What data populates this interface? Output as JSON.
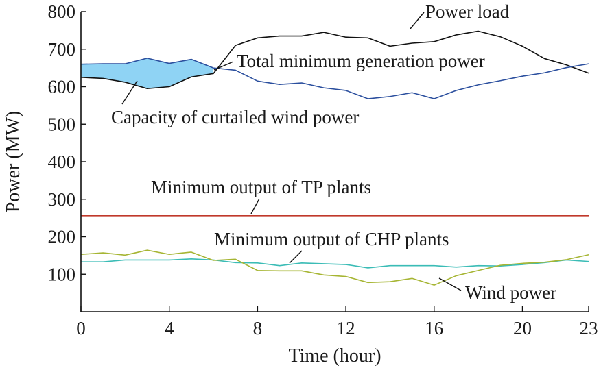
{
  "chart_data": {
    "type": "line",
    "title": "",
    "xlabel": "Time (hour)",
    "ylabel": "Power (MW)",
    "x": [
      0,
      1,
      2,
      3,
      4,
      5,
      6,
      7,
      8,
      9,
      10,
      11,
      12,
      13,
      14,
      15,
      16,
      17,
      18,
      19,
      20,
      21,
      22,
      23
    ],
    "xticks": [
      0,
      4,
      8,
      12,
      16,
      20,
      23
    ],
    "yticks": [
      100,
      200,
      300,
      400,
      500,
      600,
      700,
      800
    ],
    "xlim": [
      0,
      23
    ],
    "ylim": [
      0,
      800
    ],
    "grid": false,
    "legend": "none",
    "series": [
      {
        "key": "load",
        "name": "Power load",
        "color": "#111111",
        "values": [
          625,
          622,
          612,
          595,
          600,
          626,
          635,
          710,
          730,
          735,
          735,
          745,
          732,
          730,
          708,
          716,
          720,
          738,
          748,
          733,
          708,
          675,
          658,
          636
        ]
      },
      {
        "key": "min_gen",
        "name": "Total minimum generation power",
        "color": "#2b4f9e",
        "values": [
          660,
          661,
          661,
          676,
          662,
          673,
          650,
          644,
          615,
          606,
          610,
          597,
          590,
          568,
          574,
          584,
          568,
          590,
          605,
          616,
          628,
          637,
          651,
          661
        ]
      },
      {
        "key": "tp",
        "name": "Minimum output of TP plants",
        "color": "#c0392b",
        "values": [
          256,
          256,
          256,
          256,
          256,
          256,
          256,
          256,
          256,
          256,
          256,
          256,
          256,
          256,
          256,
          256,
          256,
          256,
          256,
          256,
          256,
          256,
          256,
          256
        ]
      },
      {
        "key": "chp",
        "name": "Minimum output of CHP plants",
        "color": "#3bbcb6",
        "values": [
          133,
          133,
          138,
          138,
          138,
          141,
          138,
          131,
          130,
          123,
          130,
          128,
          126,
          117,
          123,
          123,
          123,
          119,
          123,
          122,
          126,
          131,
          138,
          134
        ]
      },
      {
        "key": "wind",
        "name": "Wind power",
        "color": "#a6b533",
        "values": [
          153,
          157,
          151,
          164,
          153,
          159,
          137,
          140,
          110,
          109,
          109,
          98,
          94,
          78,
          80,
          89,
          71,
          96,
          110,
          124,
          129,
          132,
          139,
          152
        ]
      }
    ],
    "shaded_region": {
      "name": "Capacity of curtailed wind power",
      "color": "#8fd3f4",
      "upper": "min_gen",
      "lower": "load",
      "x_start": 0,
      "x_end": 6
    },
    "annotations": [
      {
        "key": "load",
        "text": "Power load"
      },
      {
        "key": "min_gen",
        "text": "Total minimum generation power"
      },
      {
        "key": "curtail",
        "text": "Capacity of curtailed wind power"
      },
      {
        "key": "tp",
        "text": "Minimum output of TP plants"
      },
      {
        "key": "chp",
        "text": "Minimum output of CHP plants"
      },
      {
        "key": "wind",
        "text": "Wind power"
      }
    ]
  }
}
